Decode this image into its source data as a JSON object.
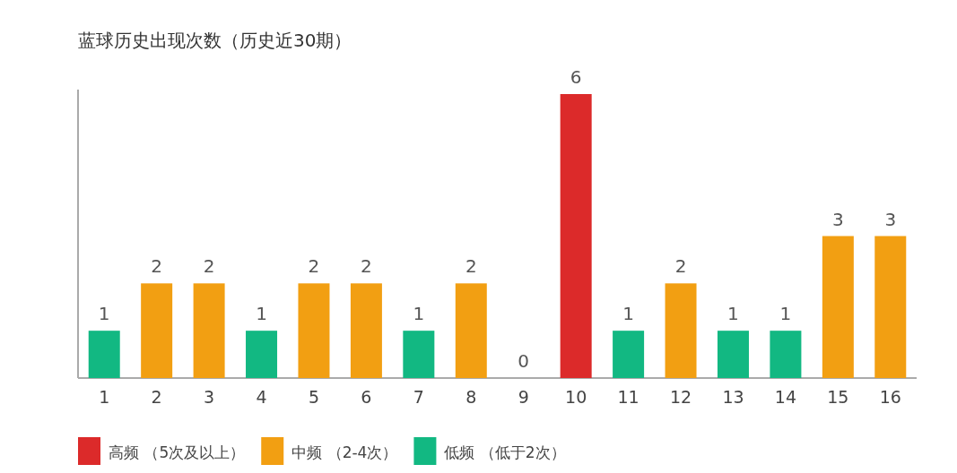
{
  "chart_data": {
    "type": "bar",
    "title": "蓝球历史出现次数（历史近30期）",
    "categories": [
      "1",
      "2",
      "3",
      "4",
      "5",
      "6",
      "7",
      "8",
      "9",
      "10",
      "11",
      "12",
      "13",
      "14",
      "15",
      "16"
    ],
    "data_labels": true,
    "legend": "bottom left",
    "series": [
      {
        "name": "高频 （5次及以上）",
        "color": "#dc2a2a",
        "values": [
          null,
          null,
          null,
          null,
          null,
          null,
          null,
          null,
          null,
          6,
          null,
          null,
          null,
          null,
          null,
          null
        ]
      },
      {
        "name": "中频 （2-4次）",
        "color": "#f29f12",
        "values": [
          null,
          2,
          2,
          null,
          2,
          2,
          null,
          2,
          null,
          null,
          null,
          2,
          null,
          null,
          3,
          3
        ]
      },
      {
        "name": "低频 （低于2次）",
        "color": "#12b882",
        "values": [
          1,
          null,
          null,
          1,
          null,
          null,
          1,
          null,
          0,
          null,
          1,
          null,
          1,
          1,
          null,
          null
        ]
      }
    ]
  }
}
